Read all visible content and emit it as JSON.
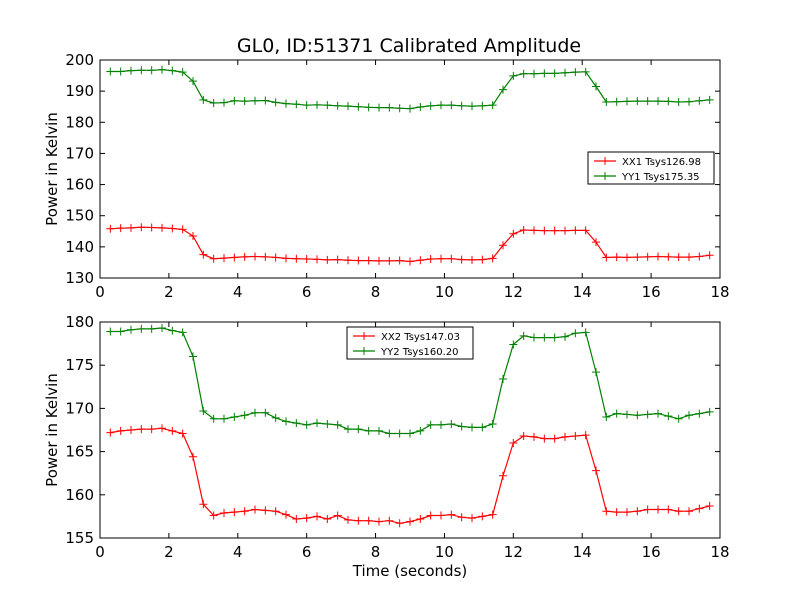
{
  "figure_title": "GL0, ID:51371 Calibrated Amplitude",
  "colors": {
    "red": "#ff0000",
    "green": "#008000",
    "axis": "#000000"
  },
  "chart_data": [
    {
      "type": "line",
      "title": "GL0, ID:51371 Calibrated Amplitude",
      "xlabel": "",
      "ylabel": "Power in Kelvin",
      "xlim": [
        0,
        18
      ],
      "ylim": [
        130,
        200
      ],
      "xticks": [
        "0",
        "2",
        "4",
        "6",
        "8",
        "10",
        "12",
        "14",
        "16",
        "18"
      ],
      "yticks": [
        "130",
        "140",
        "150",
        "160",
        "170",
        "180",
        "190",
        "200"
      ],
      "grid": false,
      "legend_position": "right",
      "x": [
        0.3,
        0.6,
        0.9,
        1.2,
        1.5,
        1.8,
        2.1,
        2.4,
        2.7,
        3.0,
        3.3,
        3.6,
        3.9,
        4.2,
        4.5,
        4.8,
        5.1,
        5.4,
        5.7,
        6.0,
        6.3,
        6.6,
        6.9,
        7.2,
        7.5,
        7.8,
        8.1,
        8.4,
        8.7,
        9.0,
        9.3,
        9.6,
        9.9,
        10.2,
        10.5,
        10.8,
        11.1,
        11.4,
        11.7,
        12.0,
        12.3,
        12.6,
        12.9,
        13.2,
        13.5,
        13.8,
        14.1,
        14.4,
        14.7,
        15.0,
        15.3,
        15.6,
        15.9,
        16.2,
        16.5,
        16.8,
        17.1,
        17.4,
        17.7
      ],
      "series": [
        {
          "name": "XX1 Tsys126.98",
          "color": "#ff0000",
          "values": [
            145.8,
            146.0,
            146.1,
            146.3,
            146.2,
            146.1,
            145.9,
            145.6,
            143.5,
            137.5,
            136.2,
            136.4,
            136.6,
            136.8,
            136.9,
            136.8,
            136.6,
            136.3,
            136.2,
            136.1,
            136.0,
            135.8,
            135.9,
            135.7,
            135.6,
            135.6,
            135.5,
            135.5,
            135.6,
            135.3,
            135.7,
            136.1,
            136.2,
            136.2,
            135.9,
            135.8,
            135.9,
            136.3,
            140.5,
            144.2,
            145.4,
            145.3,
            145.2,
            145.2,
            145.2,
            145.3,
            145.3,
            141.5,
            136.6,
            136.7,
            136.6,
            136.7,
            136.8,
            136.9,
            136.8,
            136.7,
            136.7,
            136.9,
            137.3
          ]
        },
        {
          "name": "YY1 Tsys175.35",
          "color": "#008000",
          "values": [
            196.3,
            196.3,
            196.6,
            196.7,
            196.7,
            196.9,
            196.6,
            196.1,
            193.2,
            187.2,
            186.2,
            186.3,
            186.9,
            186.8,
            186.9,
            187.0,
            186.4,
            186.0,
            185.8,
            185.5,
            185.6,
            185.5,
            185.3,
            185.2,
            185.0,
            184.8,
            184.7,
            184.7,
            184.5,
            184.4,
            184.9,
            185.3,
            185.5,
            185.5,
            185.3,
            185.2,
            185.3,
            185.5,
            190.5,
            194.9,
            195.6,
            195.6,
            195.7,
            195.7,
            195.9,
            196.1,
            196.2,
            191.5,
            186.5,
            186.6,
            186.7,
            186.8,
            186.8,
            186.8,
            186.7,
            186.5,
            186.6,
            186.9,
            187.2
          ]
        }
      ]
    },
    {
      "type": "line",
      "title": "",
      "xlabel": "Time (seconds)",
      "ylabel": "Power in Kelvin",
      "xlim": [
        0,
        18
      ],
      "ylim": [
        155,
        180
      ],
      "xticks": [
        "0",
        "2",
        "4",
        "6",
        "8",
        "10",
        "12",
        "14",
        "16",
        "18"
      ],
      "yticks": [
        "155",
        "160",
        "165",
        "170",
        "175",
        "180"
      ],
      "grid": false,
      "legend_position": "top-center",
      "x": [
        0.3,
        0.6,
        0.9,
        1.2,
        1.5,
        1.8,
        2.1,
        2.4,
        2.7,
        3.0,
        3.3,
        3.6,
        3.9,
        4.2,
        4.5,
        4.8,
        5.1,
        5.4,
        5.7,
        6.0,
        6.3,
        6.6,
        6.9,
        7.2,
        7.5,
        7.8,
        8.1,
        8.4,
        8.7,
        9.0,
        9.3,
        9.6,
        9.9,
        10.2,
        10.5,
        10.8,
        11.1,
        11.4,
        11.7,
        12.0,
        12.3,
        12.6,
        12.9,
        13.2,
        13.5,
        13.8,
        14.1,
        14.4,
        14.7,
        15.0,
        15.3,
        15.6,
        15.9,
        16.2,
        16.5,
        16.8,
        17.1,
        17.4,
        17.7
      ],
      "series": [
        {
          "name": "XX2 Tsys147.03",
          "color": "#ff0000",
          "values": [
            167.2,
            167.4,
            167.5,
            167.6,
            167.6,
            167.7,
            167.4,
            167.1,
            164.4,
            158.9,
            157.6,
            157.9,
            158.0,
            158.1,
            158.3,
            158.2,
            158.1,
            157.7,
            157.2,
            157.3,
            157.5,
            157.2,
            157.6,
            157.1,
            157.0,
            157.0,
            156.9,
            157.0,
            156.7,
            156.9,
            157.2,
            157.6,
            157.6,
            157.7,
            157.4,
            157.3,
            157.5,
            157.7,
            162.2,
            166.0,
            166.8,
            166.7,
            166.5,
            166.5,
            166.7,
            166.8,
            166.9,
            162.8,
            158.1,
            158.0,
            158.0,
            158.1,
            158.3,
            158.3,
            158.3,
            158.1,
            158.1,
            158.4,
            158.7
          ]
        },
        {
          "name": "YY2 Tsys160.20",
          "color": "#008000",
          "values": [
            178.9,
            178.9,
            179.1,
            179.2,
            179.2,
            179.3,
            179.0,
            178.8,
            176.0,
            169.7,
            168.8,
            168.8,
            169.0,
            169.2,
            169.5,
            169.5,
            168.9,
            168.5,
            168.3,
            168.1,
            168.3,
            168.2,
            168.1,
            167.6,
            167.6,
            167.4,
            167.4,
            167.1,
            167.1,
            167.1,
            167.4,
            168.1,
            168.1,
            168.2,
            167.9,
            167.8,
            167.8,
            168.2,
            173.4,
            177.4,
            178.4,
            178.2,
            178.2,
            178.2,
            178.3,
            178.7,
            178.8,
            174.2,
            169.0,
            169.4,
            169.3,
            169.2,
            169.3,
            169.4,
            169.1,
            168.8,
            169.2,
            169.4,
            169.6
          ]
        }
      ]
    }
  ]
}
